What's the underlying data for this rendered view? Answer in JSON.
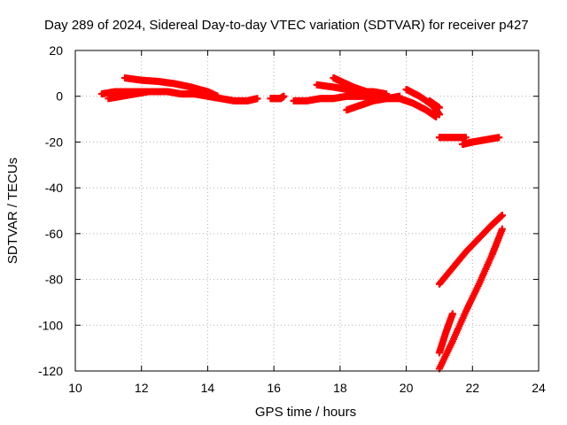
{
  "chart_data": {
    "type": "scatter",
    "title": "Day 289 of 2024, Sidereal Day-to-day VTEC variation (SDTVAR) for receiver p427",
    "xlabel": "GPS time / hours",
    "ylabel": "SDTVAR / TECUs",
    "xlim": [
      10,
      24
    ],
    "ylim": [
      -120,
      20
    ],
    "xticks": [
      10,
      12,
      14,
      16,
      18,
      20,
      22,
      24
    ],
    "yticks": [
      20,
      0,
      -20,
      -40,
      -60,
      -80,
      -100,
      -120
    ],
    "xtick_labels": [
      "10",
      "12",
      "14",
      "16",
      "18",
      "20",
      "22",
      "24"
    ],
    "ytick_labels": [
      "20",
      "0",
      "-20",
      "-40",
      "-60",
      "-80",
      "-100",
      "-120"
    ],
    "grid": true,
    "legend": "none",
    "marker_color": "#ff0000",
    "series": [
      {
        "name": "track-1",
        "x": [
          10.8,
          11.2,
          11.6,
          12.0,
          12.4,
          12.8,
          13.2,
          13.6,
          14.0,
          14.4,
          14.8,
          15.2,
          15.5
        ],
        "y": [
          1,
          2,
          2,
          2,
          2,
          2,
          1,
          1,
          0,
          -1,
          -2,
          -2,
          -1
        ]
      },
      {
        "name": "track-2",
        "x": [
          11.5,
          12.0,
          12.5,
          13.0,
          13.5,
          14.0,
          14.3
        ],
        "y": [
          8,
          7,
          6.5,
          5.5,
          4,
          2,
          0
        ]
      },
      {
        "name": "track-3",
        "x": [
          11.0,
          11.4,
          11.8,
          12.2
        ],
        "y": [
          -1,
          0,
          1,
          2
        ]
      },
      {
        "name": "track-4",
        "x": [
          15.9,
          16.2,
          16.3
        ],
        "y": [
          -1,
          -1,
          0
        ]
      },
      {
        "name": "track-5",
        "x": [
          16.6,
          17.0,
          17.4,
          17.8,
          18.2,
          18.6,
          19.0,
          19.4,
          19.8,
          20.2,
          20.6,
          20.9
        ],
        "y": [
          -2,
          -2,
          -1,
          -1,
          0,
          0,
          0,
          -1,
          -1,
          -3,
          -6,
          -9
        ]
      },
      {
        "name": "track-6",
        "x": [
          17.3,
          17.8,
          18.2,
          18.6,
          19.0,
          19.4
        ],
        "y": [
          5,
          4,
          3,
          2,
          2,
          1
        ]
      },
      {
        "name": "track-7",
        "x": [
          17.8,
          18.1,
          18.4,
          18.8,
          19.2
        ],
        "y": [
          8,
          6,
          4,
          2,
          1
        ]
      },
      {
        "name": "track-8",
        "x": [
          18.2,
          18.6,
          19.0,
          19.4,
          19.8
        ],
        "y": [
          -6,
          -4,
          -2,
          -1,
          0
        ]
      },
      {
        "name": "track-9",
        "x": [
          20.0,
          20.4,
          20.8,
          21.0
        ],
        "y": [
          3,
          0,
          -4,
          -8
        ]
      },
      {
        "name": "track-10",
        "x": [
          20.7,
          21.0
        ],
        "y": [
          -2,
          -5
        ]
      },
      {
        "name": "track-11",
        "x": [
          21.0,
          21.4,
          21.8
        ],
        "y": [
          -18,
          -18,
          -18
        ]
      },
      {
        "name": "track-12",
        "x": [
          21.7,
          22.0,
          22.4,
          22.8
        ],
        "y": [
          -21,
          -20,
          -19,
          -18
        ]
      },
      {
        "name": "track-13",
        "x": [
          21.0,
          21.4,
          21.8,
          22.2,
          22.6,
          22.9
        ],
        "y": [
          -82,
          -75,
          -68,
          -62,
          -56,
          -52
        ]
      },
      {
        "name": "track-14",
        "x": [
          21.0,
          21.2,
          21.4
        ],
        "y": [
          -112,
          -103,
          -95
        ]
      },
      {
        "name": "track-15",
        "x": [
          21.0,
          21.4,
          21.8,
          22.2,
          22.6,
          22.9
        ],
        "y": [
          -119,
          -107,
          -94,
          -82,
          -69,
          -58
        ]
      }
    ]
  }
}
